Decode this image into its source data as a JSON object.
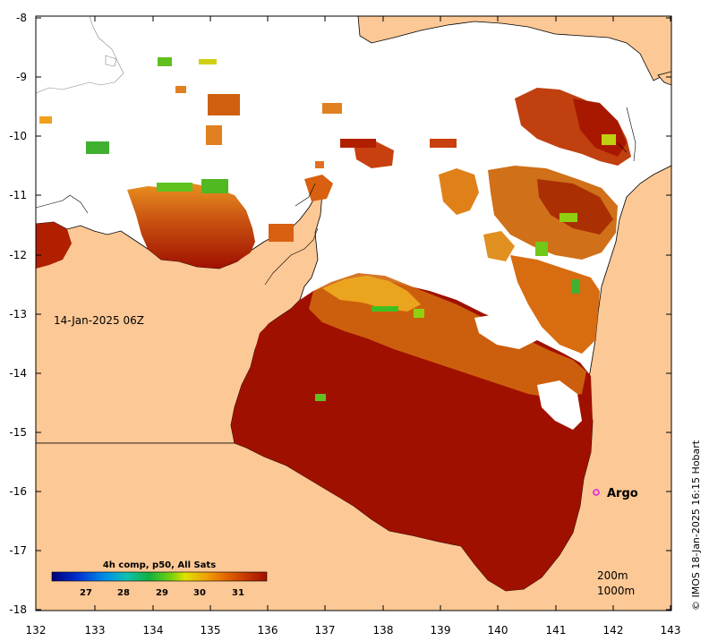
{
  "map": {
    "date_label": "14-Jan-2025 06Z",
    "argo_label": "Argo",
    "depth_labels": [
      "200m",
      "1000m"
    ],
    "credit": "© IMOS 18-Jan-2025 16:15 Hobart",
    "x_ticks": [
      "132",
      "133",
      "134",
      "135",
      "136",
      "137",
      "138",
      "139",
      "140",
      "141",
      "142",
      "143"
    ],
    "y_ticks": [
      "-8",
      "-9",
      "-10",
      "-11",
      "-12",
      "-13",
      "-14",
      "-15",
      "-16",
      "-17",
      "-18"
    ],
    "colors": {
      "land": "#fcc895",
      "ocean_no_data": "#ffffff",
      "sst_max": "#a01000",
      "argo_marker": "#e020e0"
    }
  },
  "colorbar": {
    "title": "4h comp, p50, All Sats",
    "ticks": [
      "27",
      "28",
      "29",
      "30",
      "31"
    ]
  }
}
